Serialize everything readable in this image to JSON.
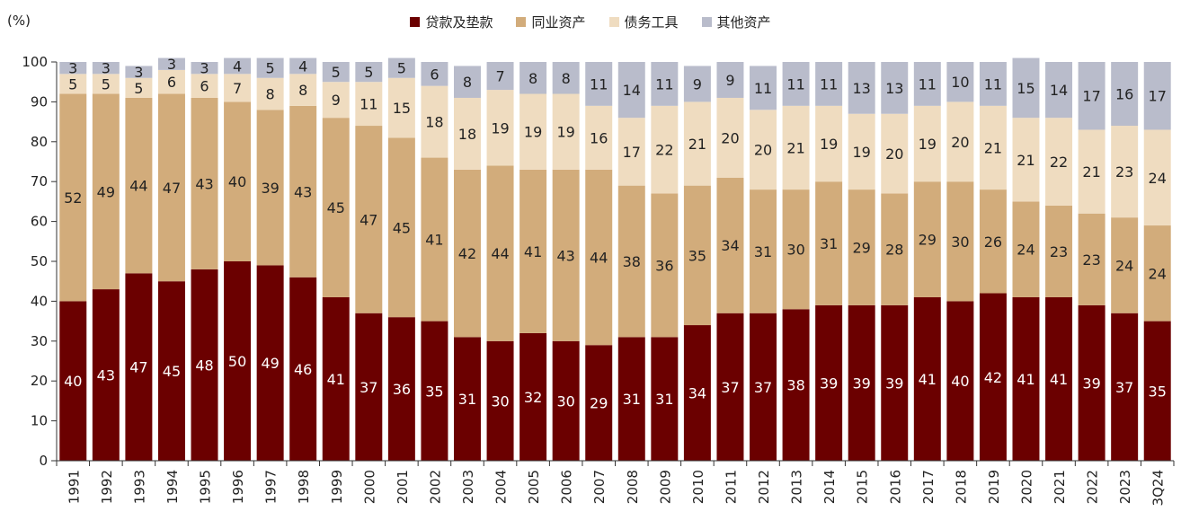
{
  "chart_data": {
    "type": "bar",
    "stacked": true,
    "unit_label": "(%)",
    "ylim": [
      0,
      100
    ],
    "yticks": [
      "0",
      "10",
      "20",
      "30",
      "40",
      "50",
      "60",
      "70",
      "80",
      "90",
      "100"
    ],
    "categories": [
      "1991",
      "1992",
      "1993",
      "1994",
      "1995",
      "1996",
      "1997",
      "1998",
      "1999",
      "2000",
      "2001",
      "2002",
      "2003",
      "2004",
      "2005",
      "2006",
      "2007",
      "2008",
      "2009",
      "2010",
      "2011",
      "2012",
      "2013",
      "2014",
      "2015",
      "2016",
      "2017",
      "2018",
      "2019",
      "2020",
      "2021",
      "2022",
      "2023",
      "3Q24"
    ],
    "series": [
      {
        "name": "贷款及垫款",
        "color": "#6b0000",
        "label_color": "#ffffff",
        "values": [
          40,
          43,
          47,
          45,
          48,
          50,
          49,
          46,
          41,
          37,
          36,
          35,
          31,
          30,
          32,
          30,
          29,
          31,
          31,
          34,
          37,
          37,
          38,
          39,
          39,
          39,
          41,
          40,
          42,
          41,
          41,
          39,
          37,
          35
        ]
      },
      {
        "name": "同业资产",
        "color": "#d2ac7b",
        "label_color": "#222222",
        "values": [
          52,
          49,
          44,
          47,
          43,
          40,
          39,
          43,
          45,
          47,
          45,
          41,
          42,
          44,
          41,
          43,
          44,
          38,
          36,
          35,
          34,
          31,
          30,
          31,
          29,
          28,
          29,
          30,
          26,
          24,
          23,
          23,
          24,
          24
        ]
      },
      {
        "name": "债务工具",
        "color": "#efdcc0",
        "label_color": "#222222",
        "values": [
          5,
          5,
          5,
          6,
          6,
          7,
          8,
          8,
          9,
          11,
          15,
          18,
          18,
          19,
          19,
          19,
          16,
          17,
          22,
          21,
          20,
          20,
          21,
          19,
          19,
          20,
          19,
          20,
          21,
          21,
          22,
          21,
          23,
          24
        ]
      },
      {
        "name": "其他资产",
        "color": "#b9bccb",
        "label_color": "#222222",
        "values": [
          3,
          3,
          3,
          3,
          3,
          4,
          5,
          4,
          5,
          5,
          5,
          6,
          8,
          7,
          8,
          8,
          11,
          14,
          11,
          9,
          9,
          11,
          11,
          11,
          13,
          13,
          11,
          10,
          11,
          15,
          14,
          17,
          16,
          17
        ]
      }
    ]
  }
}
